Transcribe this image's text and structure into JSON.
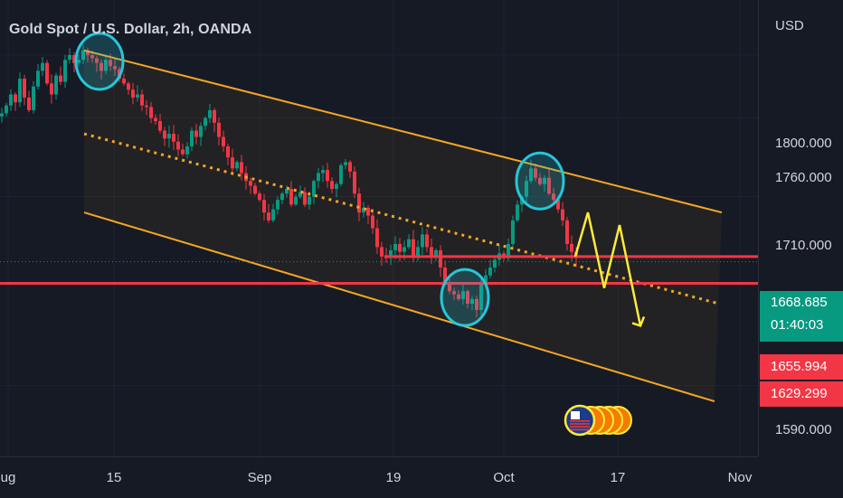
{
  "chart_data": {
    "type": "candlestick",
    "title": "Gold Spot / U.S. Dollar, 2h, OANDA",
    "currency": "USD",
    "y_ticks": [
      "1800.000",
      "1760.000",
      "1710.000",
      "1590.000"
    ],
    "x_ticks": [
      "ug",
      "15",
      "Sep",
      "19",
      "Oct",
      "17",
      "Nov"
    ],
    "price_series": [
      [
        0,
        1763
      ],
      [
        5,
        1768
      ],
      [
        10,
        1775
      ],
      [
        15,
        1770
      ],
      [
        20,
        1785
      ],
      [
        25,
        1773
      ],
      [
        30,
        1765
      ],
      [
        35,
        1780
      ],
      [
        40,
        1790
      ],
      [
        45,
        1795
      ],
      [
        50,
        1782
      ],
      [
        55,
        1775
      ],
      [
        60,
        1787
      ],
      [
        65,
        1783
      ],
      [
        70,
        1797
      ],
      [
        75,
        1800
      ],
      [
        80,
        1795
      ],
      [
        85,
        1797
      ],
      [
        90,
        1803
      ],
      [
        95,
        1800
      ],
      [
        100,
        1798
      ],
      [
        105,
        1795
      ],
      [
        110,
        1790
      ],
      [
        115,
        1797
      ],
      [
        120,
        1793
      ],
      [
        125,
        1791
      ],
      [
        130,
        1785
      ],
      [
        135,
        1782
      ],
      [
        140,
        1778
      ],
      [
        145,
        1773
      ],
      [
        150,
        1775
      ],
      [
        155,
        1768
      ],
      [
        160,
        1767
      ],
      [
        165,
        1760
      ],
      [
        170,
        1758
      ],
      [
        175,
        1752
      ],
      [
        180,
        1747
      ],
      [
        185,
        1750
      ],
      [
        190,
        1745
      ],
      [
        195,
        1740
      ],
      [
        200,
        1737
      ],
      [
        205,
        1742
      ],
      [
        210,
        1752
      ],
      [
        215,
        1748
      ],
      [
        220,
        1755
      ],
      [
        225,
        1760
      ],
      [
        230,
        1765
      ],
      [
        235,
        1757
      ],
      [
        240,
        1748
      ],
      [
        245,
        1742
      ],
      [
        250,
        1735
      ],
      [
        255,
        1728
      ],
      [
        260,
        1732
      ],
      [
        265,
        1725
      ],
      [
        270,
        1720
      ],
      [
        275,
        1717
      ],
      [
        280,
        1712
      ],
      [
        285,
        1708
      ],
      [
        290,
        1700
      ],
      [
        295,
        1695
      ],
      [
        300,
        1702
      ],
      [
        305,
        1708
      ],
      [
        310,
        1712
      ],
      [
        315,
        1715
      ],
      [
        320,
        1705
      ],
      [
        325,
        1710
      ],
      [
        330,
        1713
      ],
      [
        335,
        1705
      ],
      [
        340,
        1710
      ],
      [
        345,
        1720
      ],
      [
        350,
        1725
      ],
      [
        355,
        1727
      ],
      [
        360,
        1720
      ],
      [
        365,
        1715
      ],
      [
        370,
        1718
      ],
      [
        375,
        1730
      ],
      [
        380,
        1732
      ],
      [
        385,
        1726
      ],
      [
        390,
        1712
      ],
      [
        395,
        1700
      ],
      [
        400,
        1703
      ],
      [
        405,
        1698
      ],
      [
        410,
        1690
      ],
      [
        415,
        1678
      ],
      [
        420,
        1672
      ],
      [
        425,
        1671
      ],
      [
        430,
        1676
      ],
      [
        435,
        1680
      ],
      [
        440,
        1675
      ],
      [
        445,
        1678
      ],
      [
        450,
        1683
      ],
      [
        455,
        1672
      ],
      [
        460,
        1678
      ],
      [
        465,
        1686
      ],
      [
        470,
        1678
      ],
      [
        475,
        1672
      ],
      [
        480,
        1676
      ],
      [
        485,
        1665
      ],
      [
        490,
        1655
      ],
      [
        495,
        1650
      ],
      [
        500,
        1648
      ],
      [
        505,
        1645
      ],
      [
        510,
        1650
      ],
      [
        515,
        1642
      ],
      [
        520,
        1645
      ],
      [
        525,
        1638
      ],
      [
        530,
        1655
      ],
      [
        535,
        1660
      ],
      [
        540,
        1665
      ],
      [
        545,
        1670
      ],
      [
        550,
        1674
      ],
      [
        555,
        1671
      ],
      [
        560,
        1680
      ],
      [
        565,
        1695
      ],
      [
        570,
        1705
      ],
      [
        575,
        1710
      ],
      [
        580,
        1720
      ],
      [
        585,
        1728
      ],
      [
        590,
        1722
      ],
      [
        595,
        1718
      ],
      [
        600,
        1722
      ],
      [
        605,
        1712
      ],
      [
        610,
        1708
      ],
      [
        615,
        1702
      ],
      [
        620,
        1695
      ],
      [
        625,
        1680
      ],
      [
        630,
        1675
      ],
      [
        635,
        1671
      ]
    ],
    "current_price": "1668.685",
    "countdown": "01:40:03",
    "level_1": "1655.994",
    "level_2": "1629.299",
    "channel": {
      "upper": [
        [
          93,
          1803
        ],
        [
          798,
          1700
        ]
      ],
      "mid": [
        [
          93,
          1750
        ],
        [
          795,
          1642
        ]
      ],
      "lower": [
        [
          93,
          1700
        ],
        [
          790,
          1580
        ]
      ]
    },
    "horizontal_levels": [
      1672,
      1655
    ],
    "projection": [
      [
        636,
        1672
      ],
      [
        650,
        1700
      ],
      [
        668,
        1652
      ],
      [
        685,
        1692
      ],
      [
        708,
        1628
      ]
    ],
    "highlight_circles": [
      [
        110,
        1796
      ],
      [
        597,
        1720
      ],
      [
        514,
        1646
      ]
    ],
    "ylim": [
      1545,
      1835
    ],
    "colors": {
      "background": "#161a25",
      "up": "#089981",
      "down": "#f23645",
      "channel": "#f5a623",
      "level": "#f23645",
      "circle": "#26c6da",
      "projection": "#ffeb3b",
      "current_line": "#089981"
    }
  }
}
